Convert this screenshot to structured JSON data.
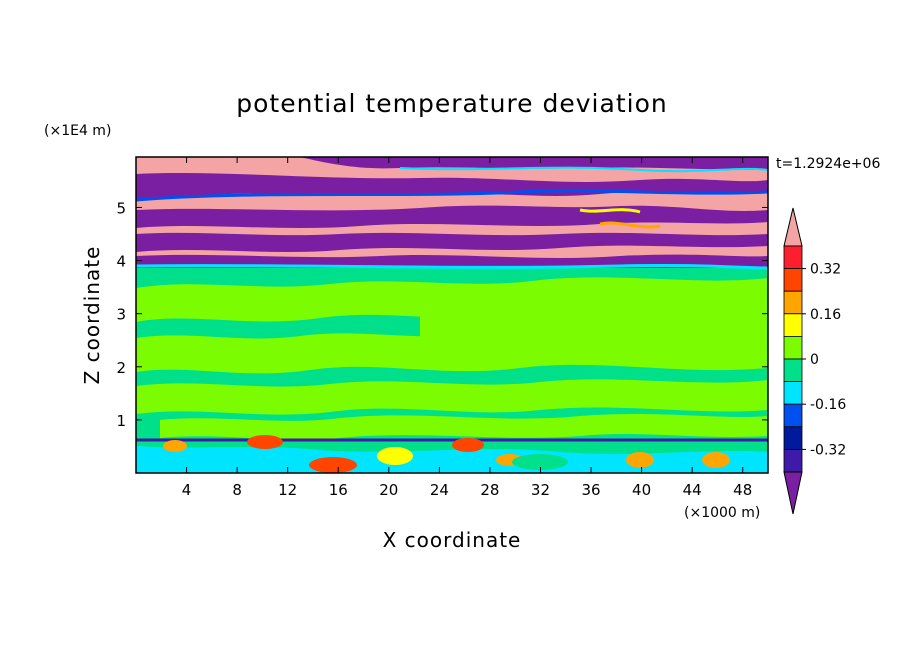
{
  "chart_data": {
    "type": "heatmap",
    "subtype": "filled-contour",
    "title": "potential temperature deviation",
    "xlabel": "X coordinate",
    "ylabel": "Z coordinate",
    "x_unit_label": "(×1000 m)",
    "y_unit_label": "(×1E4 m)",
    "time_label": "t=1.2924e+06",
    "xlim": [
      0,
      50
    ],
    "ylim": [
      0,
      5.95
    ],
    "xticks": [
      4,
      8,
      12,
      16,
      20,
      24,
      28,
      32,
      36,
      40,
      44,
      48
    ],
    "yticks": [
      1,
      2,
      3,
      4,
      5
    ],
    "colorbar": {
      "levels": [
        -0.4,
        -0.32,
        -0.24,
        -0.16,
        -0.08,
        0,
        0.08,
        0.16,
        0.24,
        0.32,
        0.4
      ],
      "tick_labels": [
        "0.32",
        "0.16",
        "0",
        "-0.16",
        "-0.32"
      ],
      "tick_values": [
        0.32,
        0.16,
        0,
        -0.16,
        -0.32
      ],
      "colors": [
        "#7b1fa2",
        "#3f1aa8",
        "#001a9c",
        "#0050f0",
        "#00e5ff",
        "#00e08a",
        "#7cfc00",
        "#ffff00",
        "#ffa500",
        "#ff4500",
        "#ff1e2e",
        "#f4a4a4"
      ],
      "extend": "both"
    },
    "bands": [
      {
        "z_min": 5.85,
        "z_max": 5.95,
        "dominant": "purple"
      },
      {
        "z_min": 5.6,
        "z_max": 5.85,
        "dominant": "pink"
      },
      {
        "z_min": 5.3,
        "z_max": 5.6,
        "dominant": "purple"
      },
      {
        "z_min": 4.9,
        "z_max": 5.3,
        "dominant": "pink"
      },
      {
        "z_min": 4.6,
        "z_max": 4.9,
        "dominant": "purple"
      },
      {
        "z_min": 4.3,
        "z_max": 4.6,
        "dominant": "pink"
      },
      {
        "z_min": 4.0,
        "z_max": 4.3,
        "dominant": "purple"
      },
      {
        "z_min": 3.85,
        "z_max": 4.0,
        "dominant": "purple/cyan"
      },
      {
        "z_min": 0.6,
        "z_max": 3.85,
        "dominant": "green/lime mix"
      },
      {
        "z_min": 0.0,
        "z_max": 0.6,
        "dominant": "green with warm patches"
      }
    ]
  }
}
